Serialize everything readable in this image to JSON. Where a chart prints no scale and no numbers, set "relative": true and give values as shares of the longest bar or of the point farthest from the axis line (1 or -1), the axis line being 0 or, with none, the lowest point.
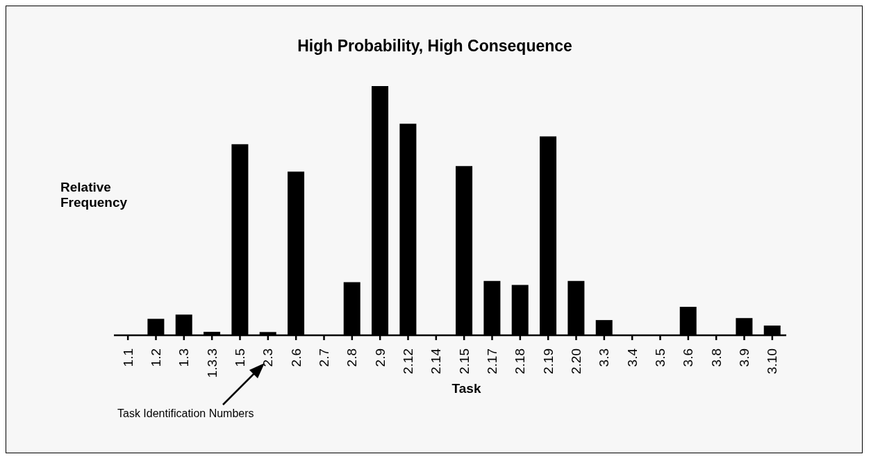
{
  "chart_data": {
    "type": "bar",
    "title": "High Probability, High Consequence",
    "xlabel": "Task",
    "ylabel": "Relative Frequency",
    "relative": true,
    "categories": [
      "1.1",
      "1.2",
      "1.3",
      "1.3.3",
      "1.5",
      "2.3",
      "2.6",
      "2.7",
      "2.8",
      "2.9",
      "2.12",
      "2.14",
      "2.15",
      "2.17",
      "2.18",
      "2.19",
      "2.20",
      "3.3",
      "3.4",
      "3.5",
      "3.6",
      "3.8",
      "3.9",
      "3.10"
    ],
    "values": [
      0,
      0.066,
      0.083,
      0.014,
      0.767,
      0.013,
      0.657,
      0,
      0.213,
      1,
      0.849,
      0,
      0.679,
      0.218,
      0.202,
      0.798,
      0.218,
      0.061,
      0,
      0,
      0.114,
      0,
      0.069,
      0.039
    ],
    "color": "#000000",
    "annotations": [
      "Task Identification Numbers"
    ],
    "grid": false
  }
}
